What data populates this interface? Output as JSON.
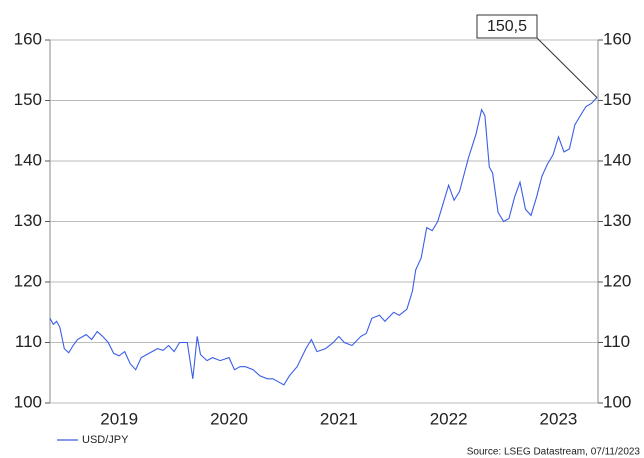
{
  "chart_data": {
    "type": "line",
    "annotation": "150,5",
    "source": "Source: LSEG Datastream, 07/11/2023",
    "legend": "bottom-left",
    "grid": true,
    "xlim": [
      2018.87,
      2023.86
    ],
    "xticks": [
      {
        "value": 2019.5,
        "label": "2019"
      },
      {
        "value": 2020.5,
        "label": "2020"
      },
      {
        "value": 2021.5,
        "label": "2021"
      },
      {
        "value": 2022.5,
        "label": "2022"
      },
      {
        "value": 2023.5,
        "label": "2023"
      }
    ],
    "ylim": [
      100,
      160
    ],
    "yticks": [
      100,
      110,
      120,
      130,
      140,
      150,
      160
    ],
    "x": [
      2018.87,
      2018.9,
      2018.93,
      2018.96,
      2019.0,
      2019.04,
      2019.08,
      2019.12,
      2019.2,
      2019.25,
      2019.3,
      2019.35,
      2019.4,
      2019.45,
      2019.5,
      2019.55,
      2019.6,
      2019.65,
      2019.7,
      2019.75,
      2019.8,
      2019.85,
      2019.9,
      2019.95,
      2020.0,
      2020.05,
      2020.12,
      2020.17,
      2020.21,
      2020.24,
      2020.3,
      2020.35,
      2020.42,
      2020.5,
      2020.55,
      2020.6,
      2020.65,
      2020.72,
      2020.78,
      2020.85,
      2020.9,
      2020.95,
      2021.0,
      2021.05,
      2021.12,
      2021.2,
      2021.25,
      2021.3,
      2021.38,
      2021.45,
      2021.5,
      2021.55,
      2021.62,
      2021.7,
      2021.75,
      2021.8,
      2021.87,
      2021.92,
      2022.0,
      2022.05,
      2022.12,
      2022.17,
      2022.2,
      2022.25,
      2022.3,
      2022.35,
      2022.4,
      2022.45,
      2022.5,
      2022.55,
      2022.6,
      2022.68,
      2022.75,
      2022.8,
      2022.83,
      2022.87,
      2022.9,
      2022.95,
      2023.0,
      2023.05,
      2023.1,
      2023.15,
      2023.2,
      2023.25,
      2023.3,
      2023.35,
      2023.4,
      2023.45,
      2023.5,
      2023.55,
      2023.6,
      2023.65,
      2023.7,
      2023.75,
      2023.8,
      2023.85
    ],
    "series": [
      {
        "name": "USD/JPY",
        "color": "#3a5ee8",
        "values": [
          114,
          113,
          113.5,
          112.5,
          109,
          108.3,
          109.5,
          110.5,
          111.3,
          110.5,
          111.8,
          111.0,
          110.0,
          108.2,
          107.8,
          108.5,
          106.5,
          105.5,
          107.5,
          108.0,
          108.5,
          109.0,
          108.7,
          109.5,
          108.5,
          110.0,
          110.0,
          104.0,
          111.0,
          108.0,
          107.0,
          107.5,
          107.0,
          107.5,
          105.5,
          106.0,
          106.0,
          105.5,
          104.5,
          104.0,
          104.0,
          103.5,
          103.0,
          104.5,
          106.0,
          109.0,
          110.5,
          108.5,
          109.0,
          110.0,
          111.0,
          110.0,
          109.5,
          111.0,
          111.5,
          114.0,
          114.5,
          113.5,
          115.0,
          114.5,
          115.5,
          118.5,
          122.0,
          124.0,
          129.0,
          128.5,
          130.0,
          133.0,
          136.0,
          133.5,
          135.0,
          140.5,
          144.5,
          148.5,
          147.5,
          139.0,
          138.0,
          131.5,
          130.0,
          130.5,
          134.0,
          136.5,
          132.0,
          131.0,
          134.0,
          137.5,
          139.5,
          141.0,
          144.0,
          141.5,
          142.0,
          146.0,
          147.5,
          149.0,
          149.5,
          150.5
        ]
      }
    ]
  }
}
